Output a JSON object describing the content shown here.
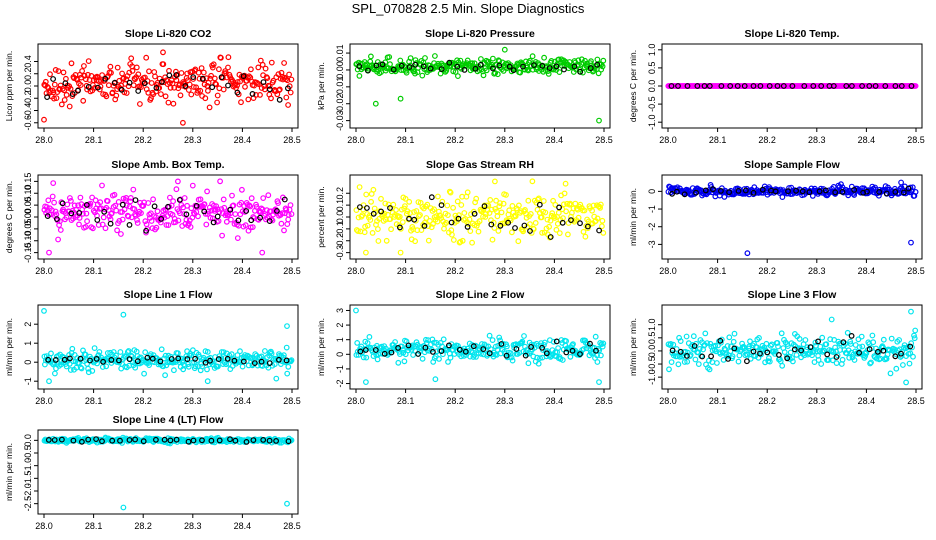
{
  "page": {
    "title": "SPL_070828  2.5 Min. Slope Diagnostics"
  },
  "chart_data": [
    {
      "type": "scatter",
      "title": "Slope Li-820 CO2",
      "xlabel": "",
      "ylabel": "Licor ppm per min.",
      "xlim": [
        28.0,
        28.5
      ],
      "ylim": [
        -0.62,
        0.62
      ],
      "xticks": [
        "28.0",
        "28.1",
        "28.2",
        "28.3",
        "28.4",
        "28.5"
      ],
      "yticks": [
        -0.6,
        -0.4,
        -0.2,
        0.0,
        0.2,
        0.4
      ],
      "ytick_labels": [
        "-0.6",
        "-0.4",
        "-0.2",
        "0.0",
        "0.2",
        "0.4"
      ],
      "color": "#ff0000",
      "series": [
        {
          "name": "points",
          "n": 300,
          "center": 0.05,
          "spread": 0.22,
          "outliers": [
            [
              28.0,
              -0.55
            ],
            [
              28.24,
              0.55
            ],
            [
              28.28,
              -0.6
            ]
          ]
        },
        {
          "name": "black points",
          "color": "#000000",
          "n": 30,
          "center": 0.0,
          "spread": 0.15
        }
      ]
    },
    {
      "type": "scatter",
      "title": "Slope Li-820 Pressure",
      "xlabel": "",
      "ylabel": "kPa per min.",
      "xlim": [
        28.0,
        28.5
      ],
      "ylim": [
        -0.032,
        0.013
      ],
      "xticks": [
        "28.0",
        "28.1",
        "28.2",
        "28.3",
        "28.4",
        "28.5"
      ],
      "yticks": [
        -0.03,
        -0.02,
        -0.01,
        0.0,
        0.01
      ],
      "ytick_labels": [
        "-0.03",
        "-0.02",
        "-0.01",
        "0.00",
        "0.01"
      ],
      "color": "#00cc00",
      "series": [
        {
          "name": "points",
          "n": 300,
          "center": 0.002,
          "spread": 0.003,
          "outliers": [
            [
              28.03,
              0.008
            ],
            [
              28.09,
              -0.017
            ],
            [
              28.3,
              0.012
            ],
            [
              28.49,
              -0.03
            ],
            [
              28.04,
              -0.02
            ]
          ]
        },
        {
          "name": "black points",
          "color": "#000000",
          "n": 30,
          "center": 0.002,
          "spread": 0.002
        }
      ]
    },
    {
      "type": "scatter",
      "title": "Slope Li-820 Temp.",
      "xlabel": "",
      "ylabel": "degrees C per min.",
      "xlim": [
        28.0,
        28.5
      ],
      "ylim": [
        -1.05,
        1.05
      ],
      "xticks": [
        "28.0",
        "28.1",
        "28.2",
        "28.3",
        "28.4",
        "28.5"
      ],
      "yticks": [
        -1.0,
        -0.5,
        0.0,
        0.5,
        1.0
      ],
      "ytick_labels": [
        "-1.0",
        "-0.5",
        "0.0",
        "0.5",
        "1.0"
      ],
      "color": "#ff00ff",
      "series": [
        {
          "name": "points",
          "n": 300,
          "center": 0.0,
          "spread": 0.0
        },
        {
          "name": "black points",
          "color": "#000000",
          "n": 30,
          "center": 0.0,
          "spread": 0.0
        }
      ]
    },
    {
      "type": "scatter",
      "title": "Slope Amb. Box Temp.",
      "xlabel": "",
      "ylabel": "degrees C per min.",
      "xlim": [
        28.0,
        28.5
      ],
      "ylim": [
        -0.16,
        0.16
      ],
      "xticks": [
        "28.0",
        "28.1",
        "28.2",
        "28.3",
        "28.4",
        "28.5"
      ],
      "yticks": [
        -0.15,
        -0.1,
        -0.05,
        0.0,
        0.05,
        0.1,
        0.15
      ],
      "ytick_labels": [
        "-0.15",
        "-0.10",
        "-0.05",
        "0.00",
        "0.05",
        "0.10",
        "0.15"
      ],
      "color": "#ff00ff",
      "series": [
        {
          "name": "points",
          "n": 300,
          "center": 0.02,
          "spread": 0.06,
          "outliers": [
            [
              28.27,
              0.15
            ],
            [
              28.01,
              -0.15
            ],
            [
              28.44,
              -0.15
            ]
          ]
        },
        {
          "name": "black points",
          "color": "#000000",
          "n": 30,
          "center": 0.02,
          "spread": 0.05
        }
      ]
    },
    {
      "type": "scatter",
      "title": "Slope Gas Stream RH",
      "xlabel": "",
      "ylabel": "percent per min.",
      "xlim": [
        28.0,
        28.5
      ],
      "ylim": [
        -0.32,
        0.32
      ],
      "xticks": [
        "28.0",
        "28.1",
        "28.2",
        "28.3",
        "28.4",
        "28.5"
      ],
      "yticks": [
        -0.3,
        -0.2,
        -0.1,
        0.0,
        0.1,
        0.2
      ],
      "ytick_labels": [
        "-0.3",
        "-0.2",
        "-0.1",
        "0.0",
        "0.1",
        "0.2"
      ],
      "color": "#ffff00",
      "series": [
        {
          "name": "points",
          "n": 300,
          "center": 0.0,
          "spread": 0.13,
          "outliers": [
            [
              28.28,
              0.3
            ],
            [
              28.02,
              -0.3
            ],
            [
              28.09,
              -0.3
            ]
          ]
        },
        {
          "name": "black points",
          "color": "#000000",
          "n": 30,
          "center": 0.0,
          "spread": 0.1
        }
      ]
    },
    {
      "type": "scatter",
      "title": "Slope Sample Flow",
      "xlabel": "",
      "ylabel": "ml/min per min.",
      "xlim": [
        28.0,
        28.5
      ],
      "ylim": [
        -3.6,
        0.7
      ],
      "xticks": [
        "28.0",
        "28.1",
        "28.2",
        "28.3",
        "28.4",
        "28.5"
      ],
      "yticks": [
        -3,
        -2,
        -1,
        0
      ],
      "ytick_labels": [
        "-3",
        "-2",
        "-1",
        "0"
      ],
      "color": "#0000ee",
      "series": [
        {
          "name": "points",
          "n": 300,
          "center": 0.0,
          "spread": 0.18,
          "outliers": [
            [
              28.16,
              -3.5
            ],
            [
              28.49,
              -2.9
            ],
            [
              28.47,
              0.5
            ]
          ]
        },
        {
          "name": "black points",
          "color": "#000000",
          "n": 30,
          "center": 0.0,
          "spread": 0.1
        }
      ]
    },
    {
      "type": "scatter",
      "title": "Slope Line 1 Flow",
      "xlabel": "",
      "ylabel": "ml/min per min.",
      "xlim": [
        28.0,
        28.5
      ],
      "ylim": [
        -1.2,
        2.8
      ],
      "xticks": [
        "28.0",
        "28.1",
        "28.2",
        "28.3",
        "28.4",
        "28.5"
      ],
      "yticks": [
        -1,
        0,
        1,
        2
      ],
      "ytick_labels": [
        "-1",
        "0",
        "1",
        "2"
      ],
      "color": "#00e5ee",
      "series": [
        {
          "name": "points",
          "n": 300,
          "center": 0.1,
          "spread": 0.4,
          "outliers": [
            [
              28.0,
              2.7
            ],
            [
              28.16,
              2.5
            ],
            [
              28.49,
              1.9
            ],
            [
              28.01,
              -1.0
            ],
            [
              28.33,
              -1.0
            ]
          ]
        },
        {
          "name": "black points",
          "color": "#000000",
          "n": 30,
          "center": 0.1,
          "spread": 0.12
        }
      ]
    },
    {
      "type": "scatter",
      "title": "Slope Line 2 Flow",
      "xlabel": "",
      "ylabel": "ml/min per min.",
      "xlim": [
        28.0,
        28.5
      ],
      "ylim": [
        -2.1,
        3.1
      ],
      "xticks": [
        "28.0",
        "28.1",
        "28.2",
        "28.3",
        "28.4",
        "28.5"
      ],
      "yticks": [
        -2,
        -1,
        0,
        1,
        2,
        3
      ],
      "ytick_labels": [
        "-2",
        "-1",
        "0",
        "1",
        "2",
        "3"
      ],
      "color": "#00e5ee",
      "series": [
        {
          "name": "points",
          "n": 300,
          "center": 0.3,
          "spread": 0.5,
          "outliers": [
            [
              28.0,
              3.0
            ],
            [
              28.02,
              -1.9
            ],
            [
              28.16,
              -1.7
            ],
            [
              28.49,
              -1.9
            ]
          ]
        },
        {
          "name": "black points",
          "color": "#000000",
          "n": 30,
          "center": 0.3,
          "spread": 0.35
        }
      ]
    },
    {
      "type": "scatter",
      "title": "Slope Line 3 Flow",
      "xlabel": "",
      "ylabel": "ml/min per min.",
      "xlim": [
        28.0,
        28.5
      ],
      "ylim": [
        -1.3,
        1.6
      ],
      "xticks": [
        "28.0",
        "28.1",
        "28.2",
        "28.3",
        "28.4",
        "28.5"
      ],
      "yticks": [
        -1.0,
        -0.5,
        0.0,
        0.5,
        1.0
      ],
      "ytick_labels": [
        "-1.0",
        "-0.5",
        "0.0",
        "0.5",
        "1.0"
      ],
      "color": "#00e5ee",
      "series": [
        {
          "name": "points",
          "n": 300,
          "center": 0.0,
          "spread": 0.4,
          "outliers": [
            [
              28.49,
              1.5
            ],
            [
              28.48,
              -1.2
            ],
            [
              28.33,
              1.2
            ]
          ]
        },
        {
          "name": "black points",
          "color": "#000000",
          "n": 30,
          "center": 0.0,
          "spread": 0.35
        }
      ]
    },
    {
      "type": "scatter",
      "title": "Slope Line 4 (LT) Flow",
      "xlabel": "",
      "ylabel": "ml/min per min.",
      "xlim": [
        28.0,
        28.5
      ],
      "ylim": [
        -2.75,
        0.25
      ],
      "xticks": [
        "28.0",
        "28.1",
        "28.2",
        "28.3",
        "28.4",
        "28.5"
      ],
      "yticks": [
        -2.5,
        -2.0,
        -1.5,
        -1.0,
        -0.5,
        0.0
      ],
      "ytick_labels": [
        "-2.5",
        "-2.0",
        "-1.5",
        "-1.0",
        "-0.5",
        "0.0"
      ],
      "color": "#00e5ee",
      "series": [
        {
          "name": "points",
          "n": 300,
          "center": 0.0,
          "spread": 0.06,
          "outliers": [
            [
              28.16,
              -2.65
            ],
            [
              28.49,
              -2.5
            ]
          ]
        },
        {
          "name": "black points",
          "color": "#000000",
          "n": 30,
          "center": 0.0,
          "spread": 0.04
        }
      ]
    }
  ]
}
